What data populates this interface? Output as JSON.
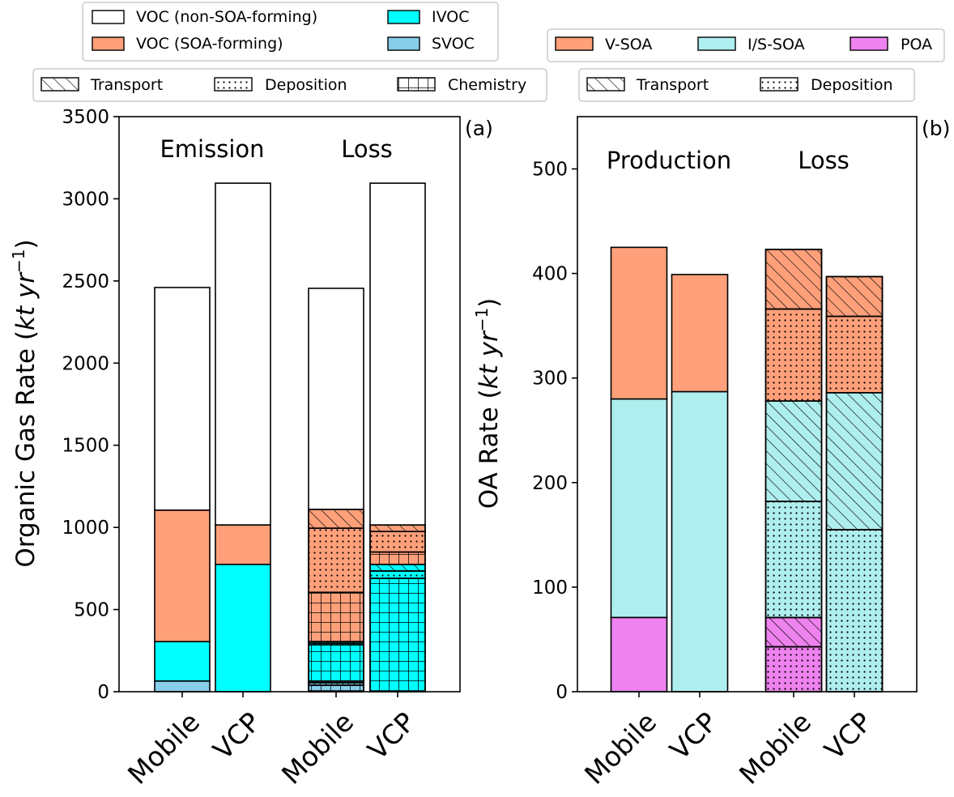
{
  "colors": {
    "voc_non_soa": "#ffffff",
    "voc_soa": "#FFA07A",
    "ivoc": "#00FFFF",
    "svoc": "#87CEEB",
    "v_soa": "#FFA07A",
    "is_soa": "#AFEEEE",
    "poa": "#EE82EE"
  },
  "chart_data": [
    {
      "id": "a",
      "type": "bar",
      "stacked": true,
      "panel_label": "(a)",
      "ylabel_text": "Organic Gas Rate (",
      "ylabel_unit": "kt yr",
      "ylabel_exp": "−1",
      "ylabel_close": ")",
      "ylim": [
        0,
        3500
      ],
      "yticks": [
        "0",
        "500",
        "1000",
        "1500",
        "2000",
        "2500",
        "3000",
        "3500"
      ],
      "yticks_values": [
        0,
        500,
        1000,
        1500,
        2000,
        2500,
        3000,
        3500
      ],
      "categories": [
        "Mobile",
        "VCP",
        "Mobile",
        "VCP"
      ],
      "group_labels": [
        "Emission",
        "Loss"
      ],
      "legend_species": [
        "VOC (non-SOA-forming)",
        "VOC (SOA-forming)",
        "IVOC",
        "SVOC"
      ],
      "legend_process": [
        "Transport",
        "Deposition",
        "Chemistry"
      ],
      "bars": [
        {
          "category": "Mobile",
          "group": "Emission",
          "segments": [
            {
              "series": "SVOC",
              "process": "",
              "value": 65
            },
            {
              "series": "IVOC",
              "process": "",
              "value": 240
            },
            {
              "series": "VOC (SOA-forming)",
              "process": "",
              "value": 800
            },
            {
              "series": "VOC (non-SOA-forming)",
              "process": "",
              "value": 1355
            }
          ]
        },
        {
          "category": "VCP",
          "group": "Emission",
          "segments": [
            {
              "series": "IVOC",
              "process": "",
              "value": 775
            },
            {
              "series": "VOC (SOA-forming)",
              "process": "",
              "value": 240
            },
            {
              "series": "VOC (non-SOA-forming)",
              "process": "",
              "value": 2080
            }
          ]
        },
        {
          "category": "Mobile",
          "group": "Loss",
          "segments": [
            {
              "series": "SVOC",
              "process": "Chemistry",
              "value": 40
            },
            {
              "series": "SVOC",
              "process": "Deposition",
              "value": 15
            },
            {
              "series": "SVOC",
              "process": "Transport",
              "value": 10
            },
            {
              "series": "IVOC",
              "process": "Chemistry",
              "value": 220
            },
            {
              "series": "IVOC",
              "process": "Deposition",
              "value": 10
            },
            {
              "series": "IVOC",
              "process": "Transport",
              "value": 10
            },
            {
              "series": "VOC (SOA-forming)",
              "process": "Chemistry",
              "value": 300
            },
            {
              "series": "VOC (SOA-forming)",
              "process": "Deposition",
              "value": 390
            },
            {
              "series": "VOC (SOA-forming)",
              "process": "Transport",
              "value": 115
            },
            {
              "series": "VOC (non-SOA-forming)",
              "process": "",
              "value": 1345
            }
          ]
        },
        {
          "category": "VCP",
          "group": "Loss",
          "segments": [
            {
              "series": "IVOC",
              "process": "Chemistry",
              "value": 690
            },
            {
              "series": "IVOC",
              "process": "Deposition",
              "value": 45
            },
            {
              "series": "IVOC",
              "process": "Transport",
              "value": 40
            },
            {
              "series": "VOC (SOA-forming)",
              "process": "Chemistry",
              "value": 75
            },
            {
              "series": "VOC (SOA-forming)",
              "process": "Deposition",
              "value": 125
            },
            {
              "series": "VOC (SOA-forming)",
              "process": "Transport",
              "value": 40
            },
            {
              "series": "VOC (non-SOA-forming)",
              "process": "",
              "value": 2080
            }
          ]
        }
      ]
    },
    {
      "id": "b",
      "type": "bar",
      "stacked": true,
      "panel_label": "(b)",
      "ylabel_text": "OA Rate (",
      "ylabel_unit": "kt yr",
      "ylabel_exp": "−1",
      "ylabel_close": ")",
      "ylim": [
        0,
        550
      ],
      "yticks": [
        "0",
        "100",
        "200",
        "300",
        "400",
        "500"
      ],
      "yticks_values": [
        0,
        100,
        200,
        300,
        400,
        500
      ],
      "categories": [
        "Mobile",
        "VCP",
        "Mobile",
        "VCP"
      ],
      "group_labels": [
        "Production",
        "Loss"
      ],
      "legend_species": [
        "V-SOA",
        "I/S-SOA",
        "POA"
      ],
      "legend_process": [
        "Transport",
        "Deposition"
      ],
      "bars": [
        {
          "category": "Mobile",
          "group": "Production",
          "segments": [
            {
              "series": "POA",
              "process": "",
              "value": 71
            },
            {
              "series": "I/S-SOA",
              "process": "",
              "value": 209
            },
            {
              "series": "V-SOA",
              "process": "",
              "value": 145
            }
          ]
        },
        {
          "category": "VCP",
          "group": "Production",
          "segments": [
            {
              "series": "I/S-SOA",
              "process": "",
              "value": 287
            },
            {
              "series": "V-SOA",
              "process": "",
              "value": 112
            }
          ]
        },
        {
          "category": "Mobile",
          "group": "Loss",
          "segments": [
            {
              "series": "POA",
              "process": "Deposition",
              "value": 43
            },
            {
              "series": "POA",
              "process": "Transport",
              "value": 28
            },
            {
              "series": "I/S-SOA",
              "process": "Deposition",
              "value": 111
            },
            {
              "series": "I/S-SOA",
              "process": "Transport",
              "value": 96
            },
            {
              "series": "V-SOA",
              "process": "Deposition",
              "value": 88
            },
            {
              "series": "V-SOA",
              "process": "Transport",
              "value": 57
            }
          ]
        },
        {
          "category": "VCP",
          "group": "Loss",
          "segments": [
            {
              "series": "I/S-SOA",
              "process": "Deposition",
              "value": 155
            },
            {
              "series": "I/S-SOA",
              "process": "Transport",
              "value": 131
            },
            {
              "series": "V-SOA",
              "process": "Deposition",
              "value": 73
            },
            {
              "series": "V-SOA",
              "process": "Transport",
              "value": 38
            }
          ]
        }
      ]
    }
  ]
}
